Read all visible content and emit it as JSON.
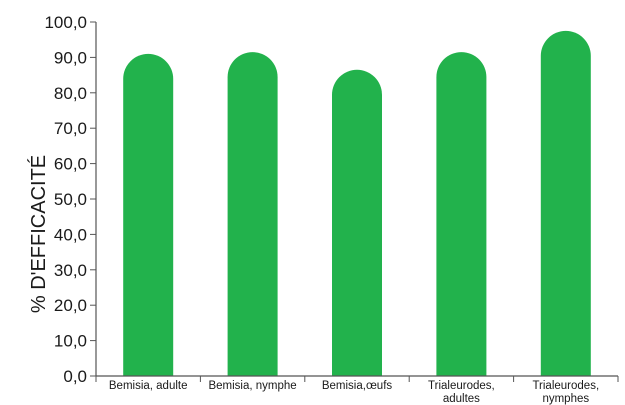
{
  "chart_data": {
    "type": "bar",
    "title": "",
    "xlabel": "",
    "ylabel": "% D'EFFICACITÉ",
    "ylim": [
      0,
      100
    ],
    "yticks": [
      "0,0",
      "10,0",
      "20,0",
      "30,0",
      "40,0",
      "50,0",
      "60,0",
      "70,0",
      "80,0",
      "90,0",
      "100,0"
    ],
    "grid": false,
    "legend": "none",
    "bar_color": "#22b24c",
    "categories": [
      [
        "Bemisia, adulte"
      ],
      [
        "Bemisia, nymphe"
      ],
      [
        "Bemisia,œufs"
      ],
      [
        "Trialeurodes,",
        "adultes"
      ],
      [
        "Trialeurodes,",
        "nymphes"
      ]
    ],
    "values": [
      91.0,
      91.5,
      86.5,
      91.5,
      97.5
    ]
  }
}
